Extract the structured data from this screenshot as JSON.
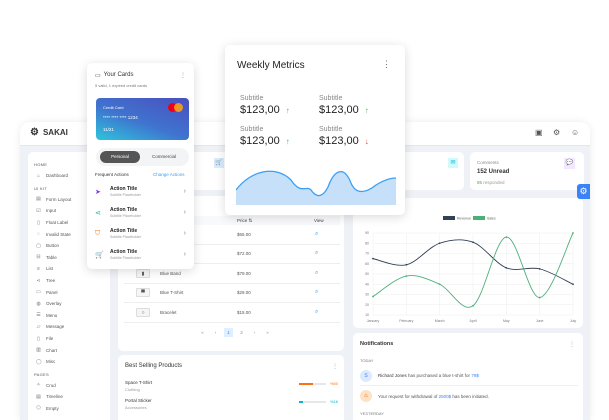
{
  "app": {
    "name": "SAKAI"
  },
  "sidebar": {
    "sections": [
      {
        "title": "HOME",
        "items": [
          {
            "label": "Dashboard",
            "icon": "⌂"
          }
        ]
      },
      {
        "title": "UI KIT",
        "items": [
          {
            "label": "Form Layout",
            "icon": "▤"
          },
          {
            "label": "Input",
            "icon": "☑"
          },
          {
            "label": "Float Label",
            "icon": "▯"
          },
          {
            "label": "Invalid State",
            "icon": "◌"
          },
          {
            "label": "Button",
            "icon": "▢"
          },
          {
            "label": "Table",
            "icon": "⊟"
          },
          {
            "label": "List",
            "icon": "≡"
          },
          {
            "label": "Tree",
            "icon": "⋖"
          },
          {
            "label": "Panel",
            "icon": "▭"
          },
          {
            "label": "Overlay",
            "icon": "◍"
          },
          {
            "label": "Menu",
            "icon": "☰"
          },
          {
            "label": "Message",
            "icon": "▱"
          },
          {
            "label": "File",
            "icon": "▯"
          },
          {
            "label": "Chart",
            "icon": "▥"
          },
          {
            "label": "Misc",
            "icon": "◯"
          }
        ]
      },
      {
        "title": "PAGES",
        "items": [
          {
            "label": "Crud",
            "icon": "✧"
          },
          {
            "label": "Timeline",
            "icon": "▤"
          },
          {
            "label": "Empty",
            "icon": "⬡"
          }
        ]
      }
    ]
  },
  "stats": {
    "comments": {
      "title": "Comments",
      "value": "152 Unread",
      "highlight": "85",
      "suffix": "responded"
    }
  },
  "products": {
    "headers": {
      "price": "Price",
      "sort_icon": "⇅",
      "view": "View"
    },
    "rows": [
      {
        "name": "",
        "price": "$65.00",
        "thumb": ""
      },
      {
        "name": "",
        "price": "$72.00",
        "thumb": ""
      },
      {
        "name": "Blue Band",
        "price": "$79.00",
        "thumb": "▮"
      },
      {
        "name": "Blue T-Shirt",
        "price": "$29.00",
        "thumb": "▀"
      },
      {
        "name": "Bracelet",
        "price": "$15.00",
        "thumb": "○"
      }
    ],
    "pagination": {
      "first": "«",
      "prev": "‹",
      "pages": [
        "1",
        "2"
      ],
      "current": "1",
      "next": "›",
      "last": "»"
    }
  },
  "best_selling": {
    "title": "Best Selling Products",
    "items": [
      {
        "name": "Space T-Shirt",
        "category": "Clothing",
        "pct": "%50",
        "value": 50,
        "color": "#f97316"
      },
      {
        "name": "Portal Sticker",
        "category": "Accessories",
        "pct": "%16",
        "value": 16,
        "color": "#06b6d4"
      }
    ]
  },
  "chart_data": {
    "type": "line",
    "categories": [
      "January",
      "February",
      "March",
      "April",
      "May",
      "June",
      "July"
    ],
    "series": [
      {
        "name": "Revenue",
        "values": [
          65,
          59,
          80,
          81,
          56,
          55,
          40
        ],
        "color": "#334155"
      },
      {
        "name": "Sales",
        "values": [
          28,
          48,
          40,
          19,
          86,
          27,
          90
        ],
        "color": "#4caf7a"
      }
    ],
    "yticks": [
      "10",
      "20",
      "30",
      "40",
      "50",
      "60",
      "70",
      "80",
      "90"
    ],
    "ylim": [
      10,
      90
    ],
    "grid": true,
    "legend": "top"
  },
  "notifications": {
    "title": "Notifications",
    "today": "TODAY",
    "yesterday": "YESTERDAY",
    "items": [
      {
        "avatar": "S",
        "pre": "Richard Jones",
        "mid": " has purchased a blue t-shirt for ",
        "hl": "79$",
        "post": ""
      },
      {
        "avatar": "⚠",
        "pre": "",
        "mid": "Your request for withdrawal of ",
        "hl": "2500$",
        "post": " has been initiated."
      }
    ]
  },
  "cards_panel": {
    "title": "Your Cards",
    "subtitle": "5 valid, 1 expired credit cards",
    "card_label": "Credit Card",
    "card_number": "**** **** **** 1234",
    "expiry": "11/21",
    "brand": "mastercard",
    "tabs": [
      "Personal",
      "Commercial"
    ],
    "active_tab": "Personal",
    "frequent": "Frequent Actions",
    "change": "Change Actions",
    "actions": [
      {
        "title": "Action Title",
        "subtitle": "Subtitle Placeholder",
        "icon": "➤",
        "color": "#7c3aed"
      },
      {
        "title": "Action Title",
        "subtitle": "Subtitle Placeholder",
        "icon": "⋖",
        "color": "#14b8a6"
      },
      {
        "title": "Action Title",
        "subtitle": "Subtitle Placeholder",
        "icon": "⛉",
        "color": "#f97316"
      },
      {
        "title": "Action Title",
        "subtitle": "Subtitle Placeholder",
        "icon": "🛒",
        "color": "#c026d3"
      }
    ]
  },
  "weekly": {
    "title": "Weekly Metrics",
    "metrics": [
      {
        "sub": "Subtitle",
        "val": "$123,00",
        "trend": "up"
      },
      {
        "sub": "Subtitle",
        "val": "$123,00",
        "trend": "up"
      },
      {
        "sub": "Subtitle",
        "val": "$123,00",
        "trend": "up"
      },
      {
        "sub": "Subtitle",
        "val": "$123,00",
        "trend": "down"
      }
    ]
  }
}
